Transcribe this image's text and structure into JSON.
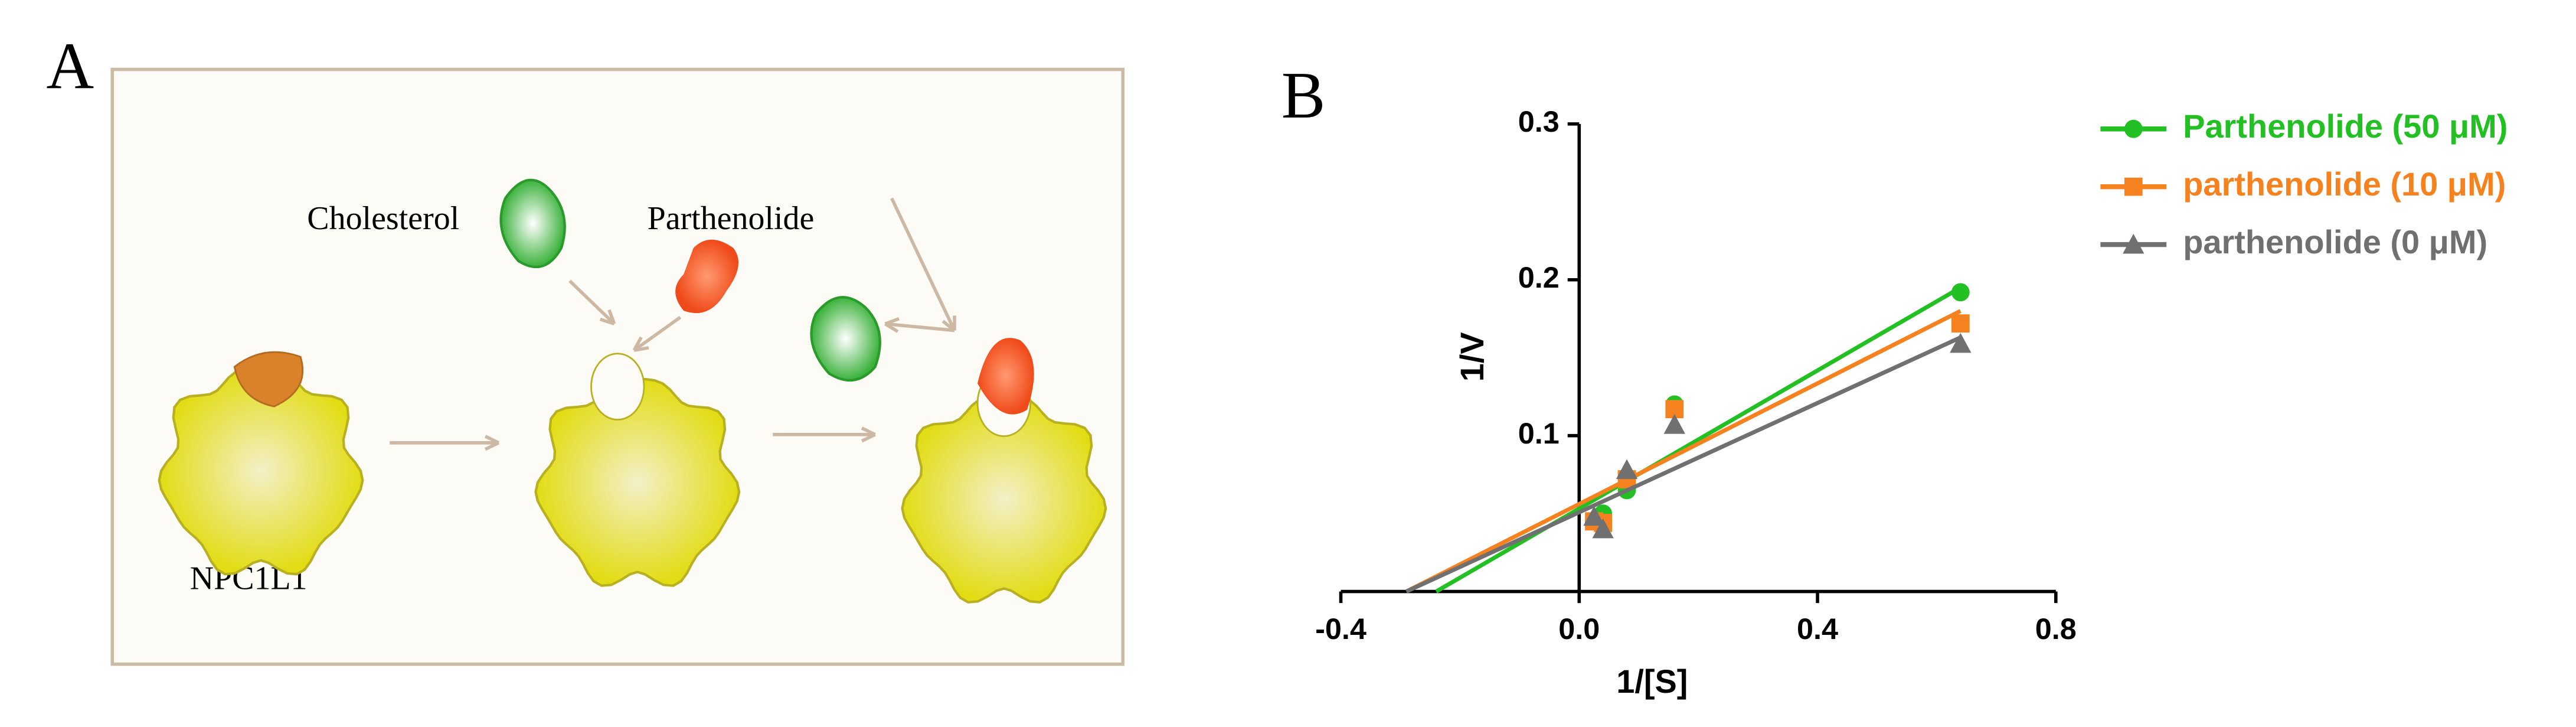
{
  "panel_a": {
    "label": "A",
    "molecules": [
      "Cholesterol",
      "Parthenolide"
    ],
    "protein": "NPC1L1"
  },
  "chart_data": {
    "type": "scatter",
    "panel_label": "B",
    "xlabel": "1/[S]",
    "ylabel": "1/V",
    "x": [
      0.025,
      0.04,
      0.08,
      0.16,
      0.64
    ],
    "series": [
      {
        "name": "Parthenolide (50 μM)",
        "color": "#22c022",
        "marker": "circle",
        "values": [
          0.045,
          0.05,
          0.065,
          0.12,
          0.192
        ],
        "fit_x": [
          -0.24,
          0.64
        ],
        "fit_y": [
          0,
          0.195
        ]
      },
      {
        "name": "parthenolide (10 μM)",
        "color": "#f5821f",
        "marker": "square",
        "values": [
          0.045,
          0.044,
          0.072,
          0.117,
          0.172
        ],
        "fit_x": [
          -0.29,
          0.64
        ],
        "fit_y": [
          0,
          0.18
        ]
      },
      {
        "name": "parthenolide (0 μM)",
        "color": "#707070",
        "marker": "triangle",
        "values": [
          0.048,
          0.04,
          0.078,
          0.107,
          0.159
        ],
        "fit_x": [
          -0.29,
          0.64
        ],
        "fit_y": [
          0,
          0.163
        ]
      }
    ],
    "xlim": [
      -0.4,
      0.8
    ],
    "xticks": [
      -0.4,
      {
        "value": 0,
        "label": "0.0"
      },
      0.4,
      0.8
    ],
    "ylim": [
      0,
      0.3
    ],
    "yticks": [
      0.1,
      0.2,
      0.3
    ]
  }
}
